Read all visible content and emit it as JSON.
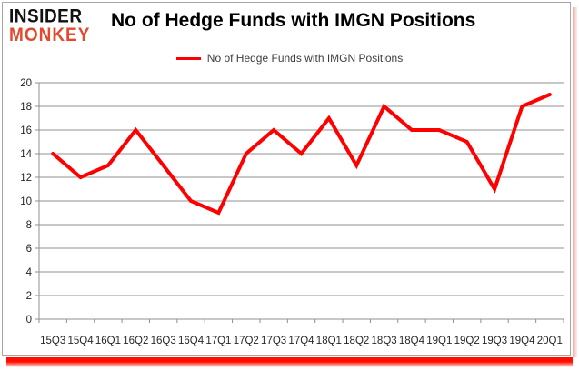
{
  "branding": {
    "logo_line1": "INSIDER",
    "logo_line2": "MONKEY",
    "logo_color_primary": "#111111",
    "logo_color_secondary": "#e2492f"
  },
  "header": {
    "title": "No of Hedge Funds with IMGN Positions"
  },
  "legend": {
    "label": "No of Hedge Funds with IMGN Positions",
    "marker_color": "#ff0000"
  },
  "chart_data": {
    "type": "line",
    "title": "No of Hedge Funds with IMGN Positions",
    "categories": [
      "15Q3",
      "15Q4",
      "16Q1",
      "16Q2",
      "16Q3",
      "16Q4",
      "17Q1",
      "17Q2",
      "17Q3",
      "17Q4",
      "18Q1",
      "18Q2",
      "18Q3",
      "18Q4",
      "19Q1",
      "19Q2",
      "19Q3",
      "19Q4",
      "20Q1"
    ],
    "series": [
      {
        "name": "No of Hedge Funds with IMGN Positions",
        "color": "#ff0000",
        "values": [
          14,
          12,
          13,
          16,
          13,
          10,
          9,
          14,
          16,
          14,
          17,
          13,
          18,
          16,
          16,
          15,
          11,
          18,
          19
        ]
      }
    ],
    "xlabel": "",
    "ylabel": "",
    "ylim": [
      0,
      20
    ],
    "ytick_step": 2,
    "grid": true,
    "grid_color": "#909090",
    "legend_position": "top-center"
  }
}
